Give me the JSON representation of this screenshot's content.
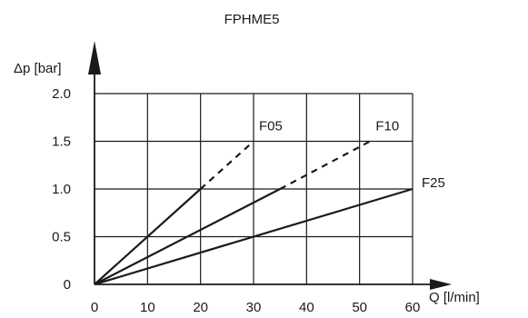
{
  "chart_data": {
    "type": "line",
    "title": "FPHME5",
    "xlabel": "Q [l/min]",
    "ylabel": "Δp [bar]",
    "xlim": [
      0,
      60
    ],
    "ylim": [
      0,
      2.0
    ],
    "x_ticks": [
      "0",
      "10",
      "20",
      "30",
      "40",
      "50",
      "60"
    ],
    "y_ticks": [
      "0",
      "0.5",
      "1.0",
      "1.5",
      "2.0"
    ],
    "grid": true,
    "legend": "none (labels at line ends)",
    "colors": {
      "line": "#1a1a1a",
      "grid": "#1a1a1a"
    },
    "series": [
      {
        "name": "F05",
        "solid": [
          [
            0,
            0
          ],
          [
            20,
            1.0
          ]
        ],
        "dashed": [
          [
            20,
            1.0
          ],
          [
            30,
            1.5
          ]
        ]
      },
      {
        "name": "F10",
        "solid": [
          [
            0,
            0
          ],
          [
            35,
            1.0
          ]
        ],
        "dashed": [
          [
            35,
            1.0
          ],
          [
            52,
            1.5
          ]
        ]
      },
      {
        "name": "F25",
        "solid": [
          [
            0,
            0
          ],
          [
            60,
            1.0
          ]
        ],
        "dashed": []
      }
    ]
  }
}
